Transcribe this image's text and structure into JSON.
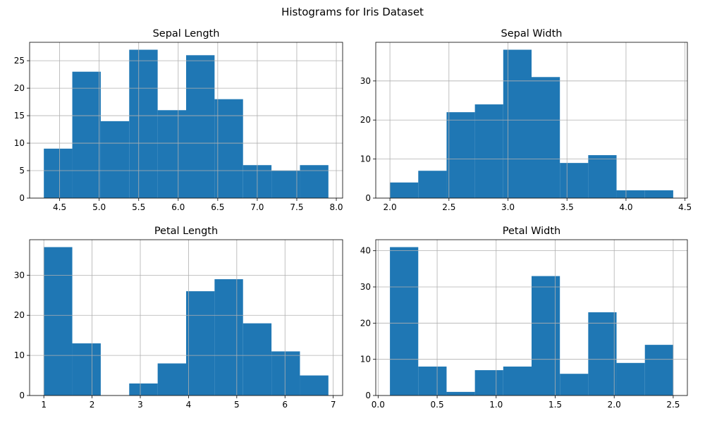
{
  "figure": {
    "title": "Histograms for Iris Dataset"
  },
  "colors": {
    "bar": "#1f77b4",
    "grid": "#b0b0b0",
    "axis": "#000000",
    "background": "#ffffff"
  },
  "chart_data": [
    {
      "type": "bar",
      "title": "Sepal Length",
      "xlabel": "",
      "ylabel": "",
      "bin_start": 4.3,
      "bin_width": 0.36,
      "values": [
        9,
        23,
        14,
        27,
        16,
        26,
        18,
        6,
        5,
        6
      ],
      "xlim": [
        4.12,
        8.08
      ],
      "ylim": [
        0,
        28.35
      ],
      "xticks": [
        4.5,
        5.0,
        5.5,
        6.0,
        6.5,
        7.0,
        7.5,
        8.0
      ],
      "xtick_labels": [
        "4.5",
        "5.0",
        "5.5",
        "6.0",
        "6.5",
        "7.0",
        "7.5",
        "8.0"
      ],
      "yticks": [
        0,
        5,
        10,
        15,
        20,
        25
      ],
      "ytick_labels": [
        "0",
        "5",
        "10",
        "15",
        "20",
        "25"
      ],
      "grid": true
    },
    {
      "type": "bar",
      "title": "Sepal Width",
      "xlabel": "",
      "ylabel": "",
      "bin_start": 2.0,
      "bin_width": 0.24,
      "values": [
        4,
        7,
        22,
        24,
        38,
        31,
        9,
        11,
        2,
        2
      ],
      "xlim": [
        1.88,
        4.52
      ],
      "ylim": [
        0,
        39.9
      ],
      "xticks": [
        2.0,
        2.5,
        3.0,
        3.5,
        4.0,
        4.5
      ],
      "xtick_labels": [
        "2.0",
        "2.5",
        "3.0",
        "3.5",
        "4.0",
        "4.5"
      ],
      "yticks": [
        0,
        10,
        20,
        30
      ],
      "ytick_labels": [
        "0",
        "10",
        "20",
        "30"
      ],
      "grid": true
    },
    {
      "type": "bar",
      "title": "Petal Length",
      "xlabel": "",
      "ylabel": "",
      "bin_start": 1.0,
      "bin_width": 0.59,
      "values": [
        37,
        13,
        0,
        3,
        8,
        26,
        29,
        18,
        11,
        5
      ],
      "xlim": [
        0.705,
        7.195
      ],
      "ylim": [
        0,
        38.85
      ],
      "xticks": [
        1,
        2,
        3,
        4,
        5,
        6,
        7
      ],
      "xtick_labels": [
        "1",
        "2",
        "3",
        "4",
        "5",
        "6",
        "7"
      ],
      "yticks": [
        0,
        10,
        20,
        30
      ],
      "ytick_labels": [
        "0",
        "10",
        "20",
        "30"
      ],
      "grid": true
    },
    {
      "type": "bar",
      "title": "Petal Width",
      "xlabel": "",
      "ylabel": "",
      "bin_start": 0.1,
      "bin_width": 0.24,
      "values": [
        41,
        8,
        1,
        7,
        8,
        33,
        6,
        23,
        9,
        14
      ],
      "xlim": [
        -0.02,
        2.62
      ],
      "ylim": [
        0,
        43.05
      ],
      "xticks": [
        0.0,
        0.5,
        1.0,
        1.5,
        2.0,
        2.5
      ],
      "xtick_labels": [
        "0.0",
        "0.5",
        "1.0",
        "1.5",
        "2.0",
        "2.5"
      ],
      "yticks": [
        0,
        10,
        20,
        30,
        40
      ],
      "ytick_labels": [
        "0",
        "10",
        "20",
        "30",
        "40"
      ],
      "grid": true
    }
  ]
}
